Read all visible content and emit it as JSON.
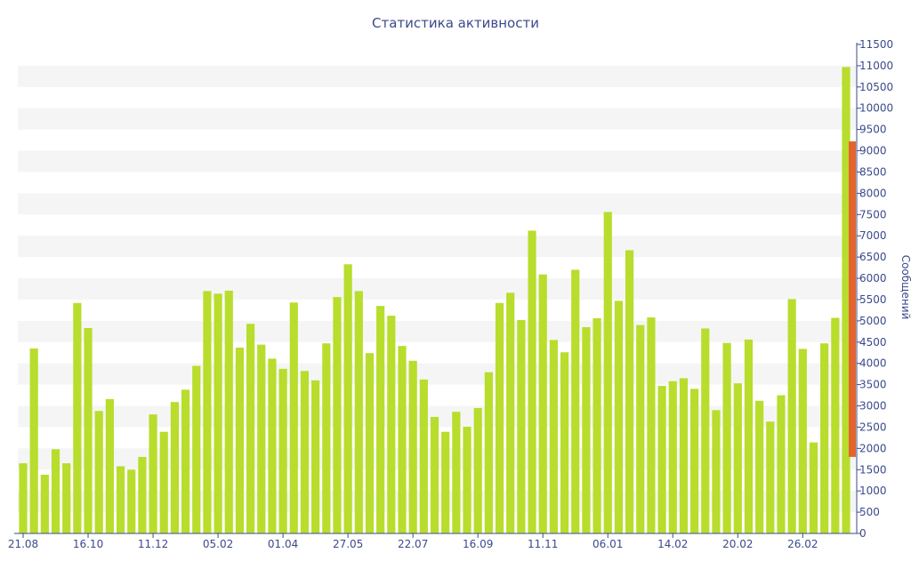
{
  "colors": {
    "bar": "#b8dd2c",
    "bar_highlight": "#e4642d",
    "axis_text": "#3b4a8a",
    "band": "#f5f5f5"
  },
  "chart_data": {
    "type": "bar",
    "title": "Статистика активности",
    "xlabel": "",
    "ylabel": "Сообщений",
    "ylim": [
      0,
      11500
    ],
    "y_axis_side": "right",
    "y_ticks": [
      0,
      500,
      1000,
      1500,
      2000,
      2500,
      3000,
      3500,
      4000,
      4500,
      5000,
      5500,
      6000,
      6500,
      7000,
      7500,
      8000,
      8500,
      9000,
      9500,
      10000,
      10500,
      11000,
      11500
    ],
    "x_tick_labels": [
      {
        "label": "21.08",
        "index": 0
      },
      {
        "label": "16.10",
        "index": 6
      },
      {
        "label": "11.12",
        "index": 12
      },
      {
        "label": "05.02",
        "index": 18
      },
      {
        "label": "01.04",
        "index": 24
      },
      {
        "label": "27.05",
        "index": 30
      },
      {
        "label": "22.07",
        "index": 36
      },
      {
        "label": "16.09",
        "index": 42
      },
      {
        "label": "11.11",
        "index": 48
      },
      {
        "label": "06.01",
        "index": 54
      },
      {
        "label": "14.02",
        "index": 60
      },
      {
        "label": "20.02",
        "index": 66
      },
      {
        "label": "26.02",
        "index": 72
      }
    ],
    "values": [
      1650,
      4350,
      1380,
      1980,
      1650,
      5420,
      4830,
      2880,
      3160,
      1580,
      1500,
      1800,
      2800,
      2390,
      3090,
      3380,
      3940,
      5700,
      5640,
      5710,
      4370,
      4930,
      4440,
      4110,
      3870,
      5430,
      3820,
      3600,
      4470,
      5560,
      6330,
      5700,
      4240,
      5350,
      5120,
      4410,
      4060,
      3620,
      2740,
      2390,
      2860,
      2510,
      2950,
      3790,
      5420,
      5660,
      5020,
      7120,
      6090,
      4550,
      4260,
      6200,
      4850,
      5060,
      7560,
      5470,
      6660,
      4900,
      5080,
      3470,
      3580,
      3650,
      3400,
      4820,
      2900,
      4480,
      3530,
      4560,
      3120,
      2630,
      3250,
      5510,
      4340,
      2140,
      4470,
      5070,
      10970
    ],
    "highlight": {
      "start": 1800,
      "end": 9220
    }
  }
}
